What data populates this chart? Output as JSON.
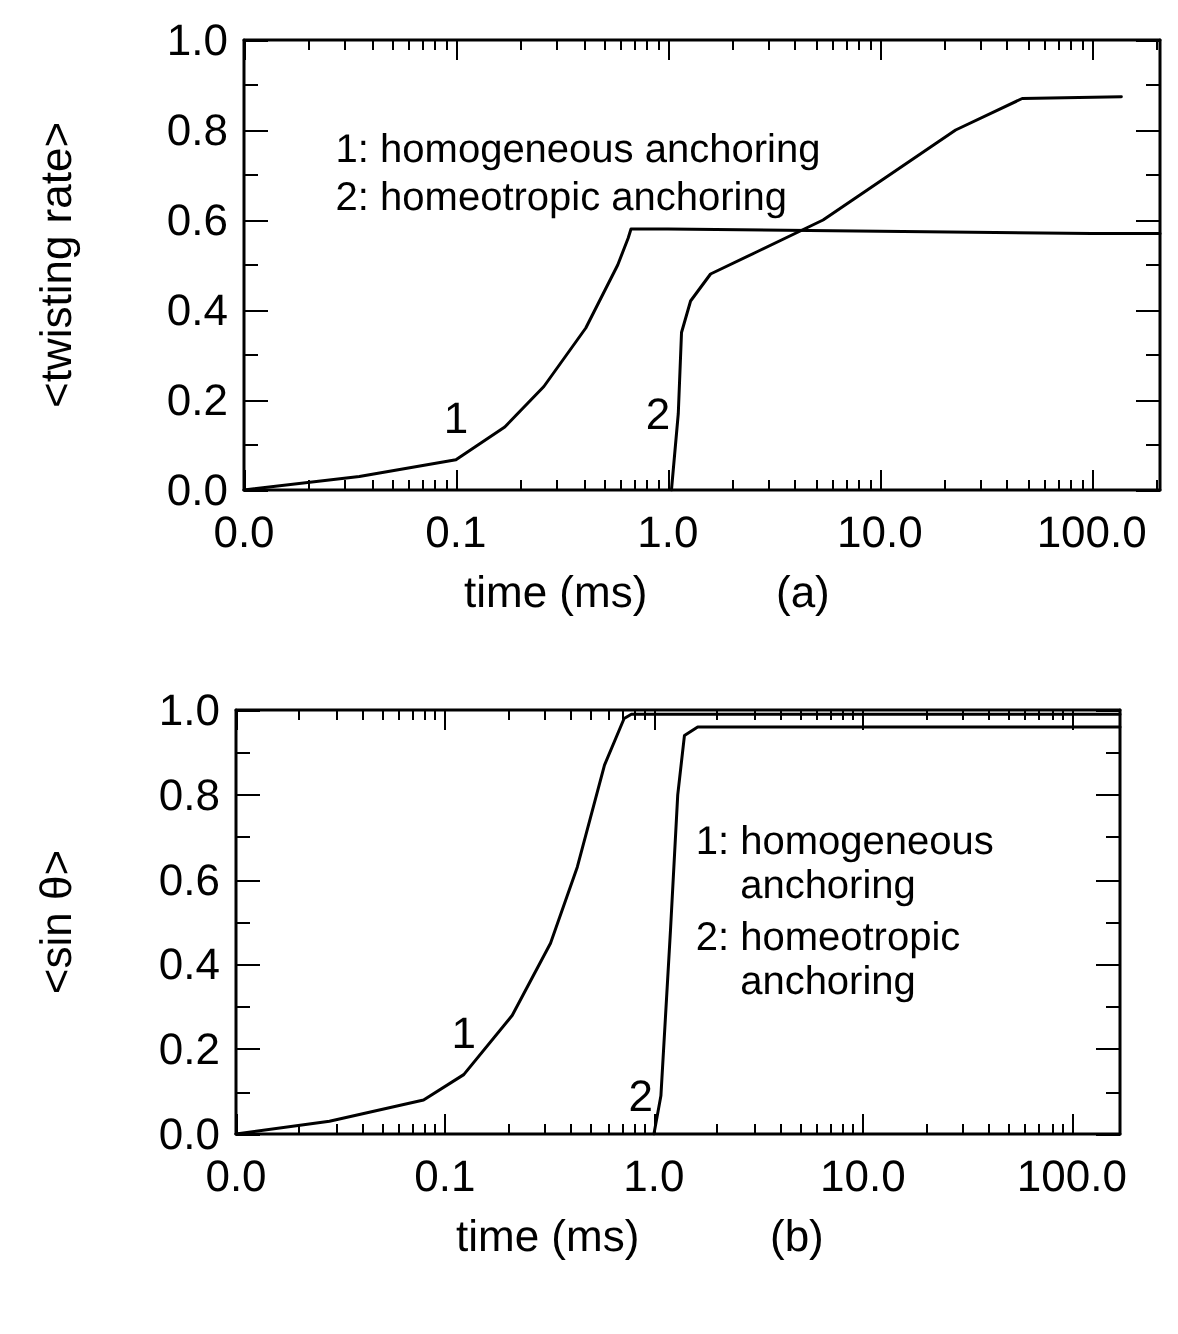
{
  "chart_data": [
    {
      "type": "line",
      "xlabel": "time (ms)",
      "ylabel": "<twisting rate>",
      "log": "x",
      "line_style": "solid",
      "marker": "none",
      "grid": false,
      "xlim": [
        0.01,
        210
      ],
      "ylim": [
        0,
        1
      ],
      "xticks": [
        {
          "value": 0.01,
          "label": "0.0"
        },
        {
          "value": 0.02,
          "label": null
        },
        {
          "value": 0.03,
          "label": null
        },
        {
          "value": 0.04,
          "label": null
        },
        {
          "value": 0.05,
          "label": null
        },
        {
          "value": 0.06,
          "label": null
        },
        {
          "value": 0.07,
          "label": null
        },
        {
          "value": 0.08,
          "label": null
        },
        {
          "value": 0.09,
          "label": null
        },
        {
          "value": 0.1,
          "label": "0.1"
        },
        {
          "value": 0.2,
          "label": null
        },
        {
          "value": 0.3,
          "label": null
        },
        {
          "value": 0.4,
          "label": null
        },
        {
          "value": 0.5,
          "label": null
        },
        {
          "value": 0.6,
          "label": null
        },
        {
          "value": 0.7,
          "label": null
        },
        {
          "value": 0.8,
          "label": null
        },
        {
          "value": 0.9,
          "label": null
        },
        {
          "value": 1,
          "label": "1.0"
        },
        {
          "value": 2,
          "label": null
        },
        {
          "value": 3,
          "label": null
        },
        {
          "value": 4,
          "label": null
        },
        {
          "value": 5,
          "label": null
        },
        {
          "value": 6,
          "label": null
        },
        {
          "value": 7,
          "label": null
        },
        {
          "value": 8,
          "label": null
        },
        {
          "value": 9,
          "label": null
        },
        {
          "value": 10,
          "label": "10.0"
        },
        {
          "value": 20,
          "label": null
        },
        {
          "value": 30,
          "label": null
        },
        {
          "value": 40,
          "label": null
        },
        {
          "value": 50,
          "label": null
        },
        {
          "value": 60,
          "label": null
        },
        {
          "value": 70,
          "label": null
        },
        {
          "value": 80,
          "label": null
        },
        {
          "value": 90,
          "label": null
        },
        {
          "value": 100,
          "label": "100.0"
        },
        {
          "value": 200,
          "label": null
        }
      ],
      "yticks": [
        {
          "value": 0,
          "label": "0.0"
        },
        {
          "value": 0.1,
          "label": null
        },
        {
          "value": 0.2,
          "label": "0.2"
        },
        {
          "value": 0.3,
          "label": null
        },
        {
          "value": 0.4,
          "label": "0.4"
        },
        {
          "value": 0.5,
          "label": null
        },
        {
          "value": 0.6,
          "label": "0.6"
        },
        {
          "value": 0.7,
          "label": null
        },
        {
          "value": 0.8,
          "label": "0.8"
        },
        {
          "value": 0.9,
          "label": null
        },
        {
          "value": 1,
          "label": "1.0"
        }
      ],
      "series": [
        {
          "name": "1",
          "color": "#000000",
          "x": [
            0.01,
            0.035,
            0.1,
            0.17,
            0.26,
            0.41,
            0.58,
            0.65,
            0.67,
            1,
            10,
            100,
            210
          ],
          "values": [
            0,
            0.03,
            0.067,
            0.14,
            0.23,
            0.36,
            0.5,
            0.56,
            0.58,
            0.58,
            0.575,
            0.57,
            0.57
          ]
        },
        {
          "name": "2",
          "color": "#000000",
          "x": [
            1.04,
            1.12,
            1.16,
            1.28,
            1.59,
            2.65,
            5.4,
            11.1,
            22.8,
            47,
            138
          ],
          "values": [
            0,
            0.17,
            0.35,
            0.42,
            0.48,
            0.53,
            0.6,
            0.7,
            0.8,
            0.87,
            0.874
          ]
        }
      ],
      "annotations": [
        "1: homogeneous anchoring",
        "2: homeotropic anchoring",
        "(a)"
      ]
    },
    {
      "type": "line",
      "xlabel": "time (ms)",
      "ylabel": "<sin θ>",
      "log": "x",
      "line_style": "solid",
      "marker": "none",
      "grid": false,
      "xlim": [
        0.01,
        170
      ],
      "ylim": [
        0,
        1
      ],
      "xticks": [
        {
          "value": 0.01,
          "label": "0.0"
        },
        {
          "value": 0.02,
          "label": null
        },
        {
          "value": 0.03,
          "label": null
        },
        {
          "value": 0.04,
          "label": null
        },
        {
          "value": 0.05,
          "label": null
        },
        {
          "value": 0.06,
          "label": null
        },
        {
          "value": 0.07,
          "label": null
        },
        {
          "value": 0.08,
          "label": null
        },
        {
          "value": 0.09,
          "label": null
        },
        {
          "value": 0.1,
          "label": "0.1"
        },
        {
          "value": 0.2,
          "label": null
        },
        {
          "value": 0.3,
          "label": null
        },
        {
          "value": 0.4,
          "label": null
        },
        {
          "value": 0.5,
          "label": null
        },
        {
          "value": 0.6,
          "label": null
        },
        {
          "value": 0.7,
          "label": null
        },
        {
          "value": 0.8,
          "label": null
        },
        {
          "value": 0.9,
          "label": null
        },
        {
          "value": 1,
          "label": "1.0"
        },
        {
          "value": 2,
          "label": null
        },
        {
          "value": 3,
          "label": null
        },
        {
          "value": 4,
          "label": null
        },
        {
          "value": 5,
          "label": null
        },
        {
          "value": 6,
          "label": null
        },
        {
          "value": 7,
          "label": null
        },
        {
          "value": 8,
          "label": null
        },
        {
          "value": 9,
          "label": null
        },
        {
          "value": 10,
          "label": "10.0"
        },
        {
          "value": 20,
          "label": null
        },
        {
          "value": 30,
          "label": null
        },
        {
          "value": 40,
          "label": null
        },
        {
          "value": 50,
          "label": null
        },
        {
          "value": 60,
          "label": null
        },
        {
          "value": 70,
          "label": null
        },
        {
          "value": 80,
          "label": null
        },
        {
          "value": 90,
          "label": null
        },
        {
          "value": 100,
          "label": "100.0"
        }
      ],
      "yticks": [
        {
          "value": 0,
          "label": "0.0"
        },
        {
          "value": 0.1,
          "label": null
        },
        {
          "value": 0.2,
          "label": "0.2"
        },
        {
          "value": 0.3,
          "label": null
        },
        {
          "value": 0.4,
          "label": "0.4"
        },
        {
          "value": 0.5,
          "label": null
        },
        {
          "value": 0.6,
          "label": "0.6"
        },
        {
          "value": 0.7,
          "label": null
        },
        {
          "value": 0.8,
          "label": "0.8"
        },
        {
          "value": 0.9,
          "label": null
        },
        {
          "value": 1,
          "label": "1.0"
        }
      ],
      "series": [
        {
          "name": "1",
          "color": "#000000",
          "x": [
            0.01,
            0.028,
            0.079,
            0.123,
            0.21,
            0.32,
            0.43,
            0.58,
            0.72,
            0.78,
            10,
            170
          ],
          "values": [
            0,
            0.03,
            0.08,
            0.14,
            0.28,
            0.45,
            0.63,
            0.87,
            0.98,
            0.99,
            0.99,
            0.99
          ]
        },
        {
          "name": "2",
          "color": "#000000",
          "x": [
            1,
            1.08,
            1.2,
            1.3,
            1.4,
            1.62,
            100,
            170
          ],
          "values": [
            0,
            0.09,
            0.48,
            0.8,
            0.94,
            0.96,
            0.96,
            0.96
          ]
        }
      ],
      "annotations": [
        "1: homogeneous anchoring",
        "2: homeotropic anchoring",
        "(b)"
      ]
    }
  ]
}
